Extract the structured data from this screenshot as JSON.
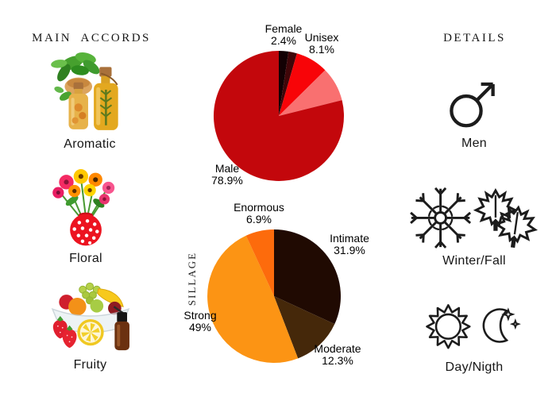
{
  "left_panel": {
    "title": "MAIN ACCORDS",
    "items": [
      {
        "label": "Aromatic",
        "icon": "herbs-and-oil-bottles"
      },
      {
        "label": "Floral",
        "icon": "flower-bouquet-in-polka-dot-vase"
      },
      {
        "label": "Fruity",
        "icon": "fruit-bowl-with-oil-bottle"
      }
    ]
  },
  "right_panel": {
    "title": "DETAILS",
    "items": [
      {
        "label": "Men",
        "icon": "male-symbol"
      },
      {
        "label": "Winter/Fall",
        "icon": "snowflake-and-maple-leaves"
      },
      {
        "label": "Day/Nigth",
        "icon": "sun-and-crescent-moon"
      }
    ]
  },
  "chart_data": [
    {
      "type": "pie",
      "name": "gender-audience",
      "start": "12-oclock",
      "direction": "clockwise",
      "labels_position": "outside",
      "legend": "none",
      "slices": [
        {
          "label": "Female",
          "value": 2.4,
          "value_text": "2.4%",
          "color": "#130104"
        },
        {
          "label": "",
          "value": 2.1,
          "value_text": "",
          "color": "#400609",
          "estimated": true
        },
        {
          "label": "Unisex",
          "value": 8.1,
          "value_text": "8.1%",
          "color": "#f80408"
        },
        {
          "label": "",
          "value": 8.5,
          "value_text": "",
          "color": "#f97070",
          "estimated": true
        },
        {
          "label": "Male",
          "value": 78.9,
          "value_text": "78.9%",
          "color": "#c3070c"
        }
      ]
    },
    {
      "type": "pie",
      "name": "sillage",
      "axis_label": "SILLAGE",
      "start": "12-oclock",
      "direction": "clockwise",
      "labels_position": "outside",
      "legend": "none",
      "slices": [
        {
          "label": "Intimate",
          "value": 31.9,
          "value_text": "31.9%",
          "color": "#200a02"
        },
        {
          "label": "Moderate",
          "value": 12.3,
          "value_text": "12.3%",
          "color": "#45280a"
        },
        {
          "label": "Strong",
          "value": 49,
          "value_text": "49%",
          "color": "#fc9414"
        },
        {
          "label": "Enormous",
          "value": 6.9,
          "value_text": "6.9%",
          "color": "#fd6b0c"
        }
      ]
    }
  ]
}
